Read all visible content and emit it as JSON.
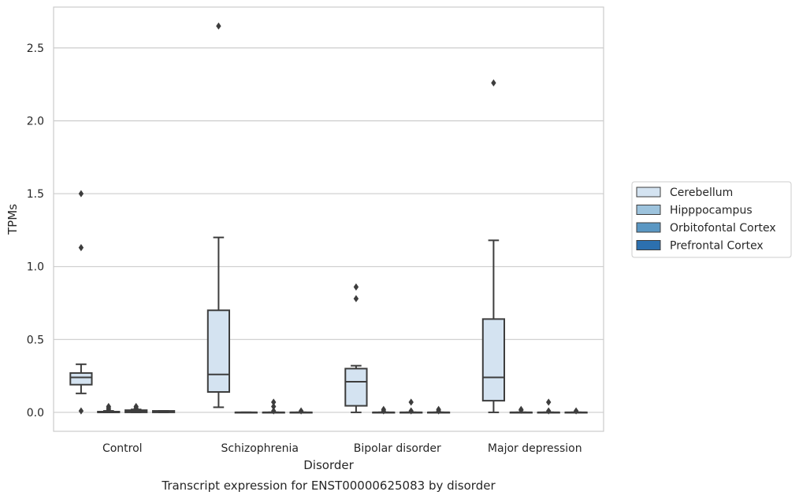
{
  "chart_data": {
    "type": "box",
    "title": "",
    "xlabel": "Disorder",
    "ylabel": "TPMs",
    "caption": "Transcript expression for ENST00000625083 by disorder",
    "categories": [
      "Control",
      "Schizophrenia",
      "Bipolar disorder",
      "Major depression"
    ],
    "ylim": [
      -0.13,
      2.78
    ],
    "yticks": [
      "0.0",
      "0.5",
      "1.0",
      "1.5",
      "2.0",
      "2.5"
    ],
    "grid": "horizontal",
    "legend_position": "right",
    "series": [
      {
        "name": "Cerebellum",
        "color": "#d4e3f1",
        "boxes": [
          {
            "q1": 0.19,
            "median": 0.24,
            "q3": 0.27,
            "whisker_low": 0.13,
            "whisker_high": 0.33,
            "outliers": [
              1.5,
              1.13,
              0.01
            ]
          },
          {
            "q1": 0.14,
            "median": 0.26,
            "q3": 0.7,
            "whisker_low": 0.035,
            "whisker_high": 1.2,
            "outliers": [
              2.65
            ]
          },
          {
            "q1": 0.045,
            "median": 0.21,
            "q3": 0.3,
            "whisker_low": 0.0,
            "whisker_high": 0.32,
            "outliers": [
              0.86,
              0.78
            ]
          },
          {
            "q1": 0.08,
            "median": 0.24,
            "q3": 0.64,
            "whisker_low": 0.0,
            "whisker_high": 1.18,
            "outliers": [
              2.26
            ]
          }
        ]
      },
      {
        "name": "Hipppocampus",
        "color": "#9dc3dd",
        "boxes": [
          {
            "q1": 0.0,
            "median": 0.0,
            "q3": 0.005,
            "whisker_low": 0.0,
            "whisker_high": 0.01,
            "outliers": [
              0.04,
              0.03,
              0.02
            ]
          },
          {
            "q1": 0.0,
            "median": 0.0,
            "q3": 0.0,
            "whisker_low": 0.0,
            "whisker_high": 0.0,
            "outliers": []
          },
          {
            "q1": 0.0,
            "median": 0.0,
            "q3": 0.0,
            "whisker_low": 0.0,
            "whisker_high": 0.0,
            "outliers": [
              0.02,
              0.01
            ]
          },
          {
            "q1": 0.0,
            "median": 0.0,
            "q3": 0.0,
            "whisker_low": 0.0,
            "whisker_high": 0.0,
            "outliers": [
              0.02,
              0.015
            ]
          }
        ]
      },
      {
        "name": "Orbitofontal Cortex",
        "color": "#5a97c3",
        "boxes": [
          {
            "q1": 0.0,
            "median": 0.005,
            "q3": 0.015,
            "whisker_low": 0.0,
            "whisker_high": 0.02,
            "outliers": [
              0.04,
              0.03
            ]
          },
          {
            "q1": 0.0,
            "median": 0.0,
            "q3": 0.0,
            "whisker_low": 0.0,
            "whisker_high": 0.0,
            "outliers": [
              0.07,
              0.04,
              0.01
            ]
          },
          {
            "q1": 0.0,
            "median": 0.0,
            "q3": 0.0,
            "whisker_low": 0.0,
            "whisker_high": 0.0,
            "outliers": [
              0.07,
              0.01
            ]
          },
          {
            "q1": 0.0,
            "median": 0.0,
            "q3": 0.0,
            "whisker_low": 0.0,
            "whisker_high": 0.0,
            "outliers": [
              0.07,
              0.01
            ]
          }
        ]
      },
      {
        "name": "Prefrontal Cortex",
        "color": "#2c70af",
        "boxes": [
          {
            "q1": 0.0,
            "median": 0.005,
            "q3": 0.01,
            "whisker_low": 0.0,
            "whisker_high": 0.01,
            "outliers": []
          },
          {
            "q1": 0.0,
            "median": 0.0,
            "q3": 0.0,
            "whisker_low": 0.0,
            "whisker_high": 0.0,
            "outliers": [
              0.01
            ]
          },
          {
            "q1": 0.0,
            "median": 0.0,
            "q3": 0.0,
            "whisker_low": 0.0,
            "whisker_high": 0.0,
            "outliers": [
              0.02,
              0.01
            ]
          },
          {
            "q1": 0.0,
            "median": 0.0,
            "q3": 0.0,
            "whisker_low": 0.0,
            "whisker_high": 0.0,
            "outliers": [
              0.01
            ]
          }
        ]
      }
    ]
  }
}
